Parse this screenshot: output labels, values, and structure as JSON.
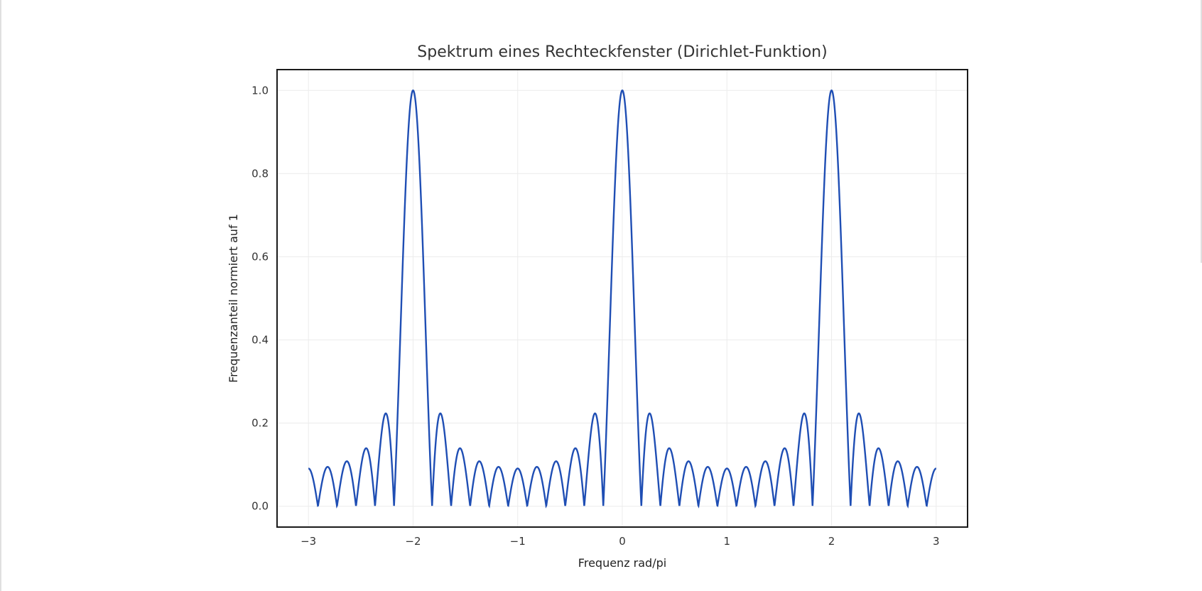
{
  "chart_data": {
    "type": "line",
    "title": "Spektrum eines Rechteckfenster (Dirichlet-Funktion)",
    "xlabel": "Frequenz rad/pi",
    "ylabel": "Frequenzanteil normiert auf 1",
    "xlim": [
      -3.3,
      3.3
    ],
    "ylim": [
      -0.05,
      1.05
    ],
    "xticks": [
      -3,
      -2,
      -1,
      0,
      1,
      2,
      3
    ],
    "xtick_labels": [
      "−3",
      "−2",
      "−1",
      "0",
      "1",
      "2",
      "3"
    ],
    "yticks": [
      0.0,
      0.2,
      0.4,
      0.6,
      0.8,
      1.0
    ],
    "ytick_labels": [
      "0.0",
      "0.2",
      "0.4",
      "0.6",
      "0.8",
      "1.0"
    ],
    "grid": true,
    "line_color": "#1f4eb4",
    "series": [
      {
        "function": "abs(sin(N*pi*x/2) / (N*sin(pi*x/2)))",
        "N": 11,
        "x_range": [
          -3,
          3
        ],
        "peaks_at": [
          -2,
          0,
          2
        ],
        "peak_value": 1.0,
        "first_sidelobe": 0.22
      }
    ]
  }
}
